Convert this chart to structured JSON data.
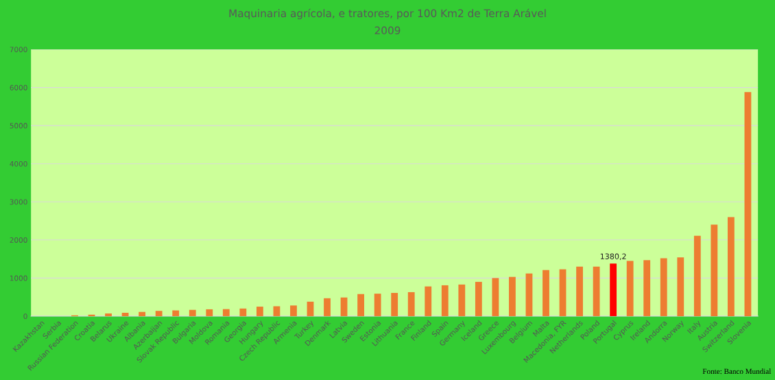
{
  "chart_data": {
    "type": "bar",
    "title": "Maquinaria agrícola, e tratores, por 100 Km2 de Terra Arável",
    "subtitle": "2009",
    "categories": [
      "Kazakhstan",
      "Serbia",
      "Russian Federation",
      "Croatia",
      "Belarus",
      "Ukraine",
      "Albania",
      "Azerbaijan",
      "Slovak Republic",
      "Bulgaria",
      "Moldova",
      "Romania",
      "Georgia",
      "Hungary",
      "Czech Republic",
      "Armenia",
      "Turkey",
      "Denmark",
      "Latvia",
      "Sweden",
      "Estonia",
      "Lithuania",
      "France",
      "Finland",
      "Spain",
      "Germany",
      "Iceland",
      "Greece",
      "Luxembourg",
      "Belgium",
      "Malta",
      "Macedonia, FYR",
      "Netherlands",
      "Poland",
      "Portugal",
      "Cyprus",
      "Ireland",
      "Andorra",
      "Norway",
      "Italy",
      "Austria",
      "Switzerland",
      "Slovenia"
    ],
    "values": [
      0,
      0,
      20,
      40,
      70,
      90,
      110,
      140,
      150,
      165,
      180,
      185,
      200,
      250,
      260,
      280,
      380,
      470,
      490,
      580,
      590,
      610,
      630,
      780,
      810,
      830,
      900,
      1000,
      1030,
      1120,
      1210,
      1230,
      1300,
      1300,
      1380.2,
      1450,
      1470,
      1520,
      1540,
      2110,
      2400,
      2600,
      5880
    ],
    "colors": [
      "#ed7d31",
      "#ed7d31",
      "#ed7d31",
      "#ed7d31",
      "#ed7d31",
      "#ed7d31",
      "#ed7d31",
      "#ed7d31",
      "#ed7d31",
      "#ed7d31",
      "#ed7d31",
      "#ed7d31",
      "#ed7d31",
      "#ed7d31",
      "#ed7d31",
      "#ed7d31",
      "#ed7d31",
      "#ed7d31",
      "#ed7d31",
      "#ed7d31",
      "#ed7d31",
      "#ed7d31",
      "#ed7d31",
      "#ed7d31",
      "#ed7d31",
      "#ed7d31",
      "#ed7d31",
      "#ed7d31",
      "#ed7d31",
      "#ed7d31",
      "#ed7d31",
      "#ed7d31",
      "#ed7d31",
      "#ed7d31",
      "#ff0000",
      "#ed7d31",
      "#ed7d31",
      "#ed7d31",
      "#ed7d31",
      "#ed7d31",
      "#ed7d31",
      "#ed7d31",
      "#ed7d31"
    ],
    "value_labels": [
      null,
      null,
      null,
      null,
      null,
      null,
      null,
      null,
      null,
      null,
      null,
      null,
      null,
      null,
      null,
      null,
      null,
      null,
      null,
      null,
      null,
      null,
      null,
      null,
      null,
      null,
      null,
      null,
      null,
      null,
      null,
      null,
      null,
      null,
      "1380,2",
      null,
      null,
      null,
      null,
      null,
      null,
      null,
      null
    ],
    "ylim": [
      0,
      7000
    ],
    "yticks": [
      0,
      1000,
      2000,
      3000,
      4000,
      5000,
      6000,
      7000
    ],
    "grid": "y",
    "annotations": [
      "Fonte: Banco Mundial"
    ]
  }
}
